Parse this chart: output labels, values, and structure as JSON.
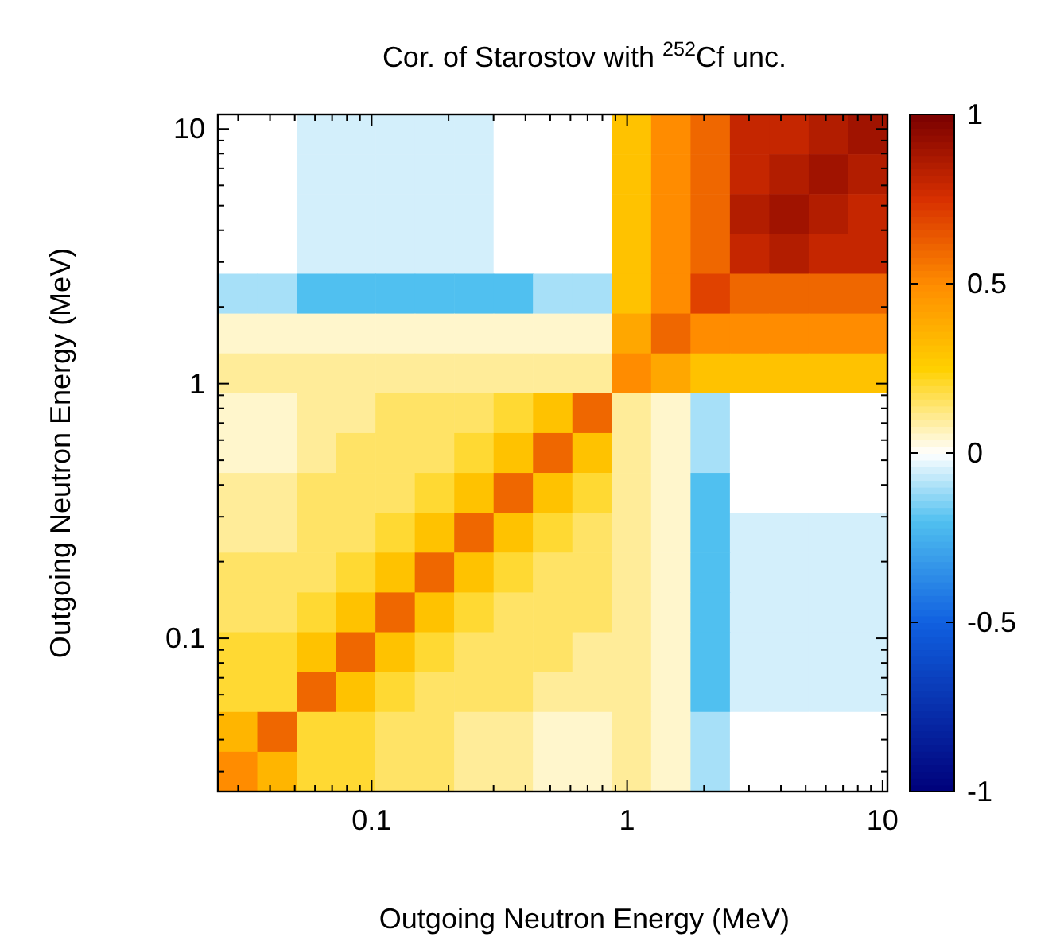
{
  "chart_data": {
    "type": "heatmap",
    "title": "Cor. of Starostov with $^{252}$Cf unc.",
    "xlabel": "Outgoing Neutron Energy (MeV)",
    "ylabel": "Outgoing Neutron Energy (MeV)",
    "log": "xy",
    "xlim": [
      0.025,
      10.45
    ],
    "ylim": [
      0.025,
      11.4
    ],
    "xticks": [
      {
        "value": 0.03,
        "label": null
      },
      {
        "value": 0.04,
        "label": null
      },
      {
        "value": 0.05,
        "label": null
      },
      {
        "value": 0.06,
        "label": null
      },
      {
        "value": 0.07,
        "label": null
      },
      {
        "value": 0.08,
        "label": null
      },
      {
        "value": 0.09,
        "label": null
      },
      0.1,
      {
        "value": 0.2,
        "label": null
      },
      {
        "value": 0.3,
        "label": null
      },
      {
        "value": 0.4,
        "label": null
      },
      {
        "value": 0.5,
        "label": null
      },
      {
        "value": 0.6,
        "label": null
      },
      {
        "value": 0.7,
        "label": null
      },
      {
        "value": 0.8,
        "label": null
      },
      {
        "value": 0.9,
        "label": null
      },
      1,
      {
        "value": 2,
        "label": null
      },
      {
        "value": 3,
        "label": null
      },
      {
        "value": 4,
        "label": null
      },
      {
        "value": 5,
        "label": null
      },
      {
        "value": 6,
        "label": null
      },
      {
        "value": 7,
        "label": null
      },
      {
        "value": 8,
        "label": null
      },
      {
        "value": 9,
        "label": null
      },
      10
    ],
    "yticks": [
      {
        "value": 0.03,
        "label": null
      },
      {
        "value": 0.04,
        "label": null
      },
      {
        "value": 0.05,
        "label": null
      },
      {
        "value": 0.06,
        "label": null
      },
      {
        "value": 0.07,
        "label": null
      },
      {
        "value": 0.08,
        "label": null
      },
      {
        "value": 0.09,
        "label": null
      },
      0.1,
      {
        "value": 0.2,
        "label": null
      },
      {
        "value": 0.3,
        "label": null
      },
      {
        "value": 0.4,
        "label": null
      },
      {
        "value": 0.5,
        "label": null
      },
      {
        "value": 0.6,
        "label": null
      },
      {
        "value": 0.7,
        "label": null
      },
      {
        "value": 0.8,
        "label": null
      },
      {
        "value": 0.9,
        "label": null
      },
      1,
      {
        "value": 2,
        "label": null
      },
      {
        "value": 3,
        "label": null
      },
      {
        "value": 4,
        "label": null
      },
      {
        "value": 5,
        "label": null
      },
      {
        "value": 6,
        "label": null
      },
      {
        "value": 7,
        "label": null
      },
      {
        "value": 8,
        "label": null
      },
      {
        "value": 9,
        "label": null
      },
      10
    ],
    "clim": [
      -1,
      1
    ],
    "cticks": [
      -1,
      -0.5,
      0,
      0.5,
      1
    ],
    "cells": [
      [
        0,
        0,
        -0.05,
        -0.05,
        -0.05,
        -0.05,
        -0.05,
        0,
        0,
        0,
        0.3,
        0.5,
        0.6,
        0.8,
        0.8,
        0.85,
        0.9
      ],
      [
        0,
        0,
        -0.05,
        -0.05,
        -0.05,
        -0.05,
        -0.05,
        0,
        0,
        0,
        0.3,
        0.5,
        0.6,
        0.8,
        0.85,
        0.9,
        0.85
      ],
      [
        0,
        0,
        -0.05,
        -0.05,
        -0.05,
        -0.05,
        -0.05,
        0,
        0,
        0,
        0.3,
        0.5,
        0.6,
        0.85,
        0.9,
        0.85,
        0.8
      ],
      [
        0,
        0,
        -0.05,
        -0.05,
        -0.05,
        -0.05,
        -0.05,
        0,
        0,
        0,
        0.3,
        0.5,
        0.6,
        0.8,
        0.85,
        0.8,
        0.8
      ],
      [
        -0.1,
        -0.1,
        -0.2,
        -0.2,
        -0.2,
        -0.2,
        -0.2,
        -0.2,
        -0.1,
        -0.1,
        0.3,
        0.5,
        0.7,
        0.6,
        0.6,
        0.6,
        0.6
      ],
      [
        0.05,
        0.05,
        0.05,
        0.05,
        0.05,
        0.05,
        0.05,
        0.05,
        0.05,
        0.05,
        0.4,
        0.6,
        0.5,
        0.5,
        0.5,
        0.5,
        0.5
      ],
      [
        0.1,
        0.1,
        0.1,
        0.1,
        0.1,
        0.1,
        0.1,
        0.1,
        0.1,
        0.1,
        0.5,
        0.4,
        0.3,
        0.3,
        0.3,
        0.3,
        0.3
      ],
      [
        0.05,
        0.05,
        0.1,
        0.1,
        0.15,
        0.15,
        0.15,
        0.2,
        0.3,
        0.6,
        0.1,
        0.05,
        -0.1,
        0,
        0,
        0,
        0
      ],
      [
        0.05,
        0.05,
        0.1,
        0.15,
        0.15,
        0.15,
        0.2,
        0.3,
        0.6,
        0.3,
        0.1,
        0.05,
        -0.1,
        0,
        0,
        0,
        0
      ],
      [
        0.1,
        0.1,
        0.15,
        0.15,
        0.15,
        0.2,
        0.3,
        0.6,
        0.3,
        0.2,
        0.1,
        0.05,
        -0.2,
        0,
        0,
        0,
        0
      ],
      [
        0.1,
        0.1,
        0.15,
        0.15,
        0.2,
        0.3,
        0.6,
        0.3,
        0.2,
        0.15,
        0.1,
        0.05,
        -0.2,
        -0.05,
        -0.05,
        -0.05,
        -0.05
      ],
      [
        0.15,
        0.15,
        0.15,
        0.2,
        0.3,
        0.6,
        0.3,
        0.2,
        0.15,
        0.15,
        0.1,
        0.05,
        -0.2,
        -0.05,
        -0.05,
        -0.05,
        -0.05
      ],
      [
        0.15,
        0.15,
        0.2,
        0.3,
        0.6,
        0.3,
        0.2,
        0.15,
        0.15,
        0.15,
        0.1,
        0.05,
        -0.2,
        -0.05,
        -0.05,
        -0.05,
        -0.05
      ],
      [
        0.2,
        0.2,
        0.3,
        0.6,
        0.3,
        0.2,
        0.15,
        0.15,
        0.15,
        0.1,
        0.1,
        0.05,
        -0.2,
        -0.05,
        -0.05,
        -0.05,
        -0.05
      ],
      [
        0.2,
        0.2,
        0.6,
        0.3,
        0.2,
        0.15,
        0.15,
        0.15,
        0.1,
        0.1,
        0.1,
        0.05,
        -0.2,
        -0.05,
        -0.05,
        -0.05,
        -0.05
      ],
      [
        0.35,
        0.6,
        0.2,
        0.2,
        0.15,
        0.15,
        0.1,
        0.1,
        0.05,
        0.05,
        0.1,
        0.05,
        -0.1,
        0,
        0,
        0,
        0
      ],
      [
        0.5,
        0.35,
        0.2,
        0.2,
        0.15,
        0.15,
        0.1,
        0.1,
        0.05,
        0.05,
        0.1,
        0.05,
        -0.1,
        0,
        0,
        0,
        0
      ]
    ]
  }
}
